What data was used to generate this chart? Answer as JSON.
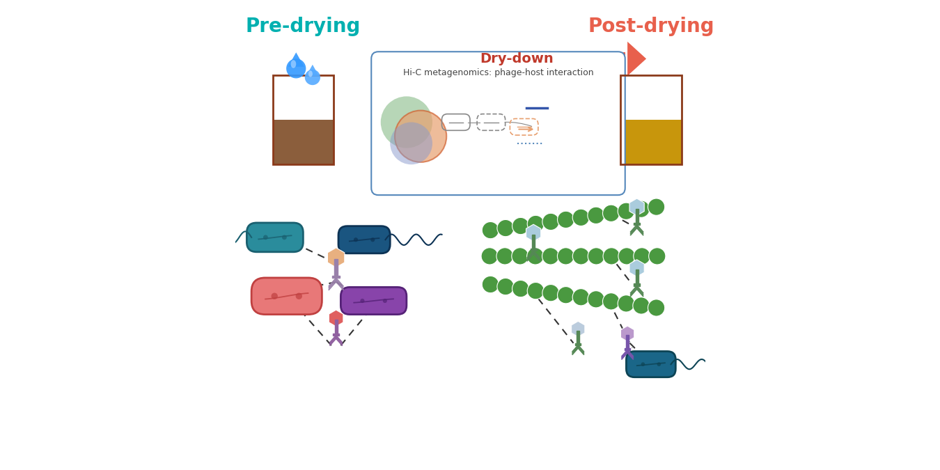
{
  "title_left": "Pre-drying",
  "title_left_color": "#00B0B0",
  "title_right": "Post-drying",
  "title_right_color": "#E8604C",
  "arrow_label": "Dry-down",
  "arrow_label_color": "#C0392B",
  "arrow_left_color": "#00B0B0",
  "arrow_right_color": "#E8604C",
  "hic_box_label": "Hi-C metagenomics: phage-host interaction",
  "soil_wet_color": "#8B5E3C",
  "soil_dry_color": "#C8960C",
  "soil_border_color": "#8B3A1A",
  "water_color": "#ffffff",
  "background": "#ffffff"
}
